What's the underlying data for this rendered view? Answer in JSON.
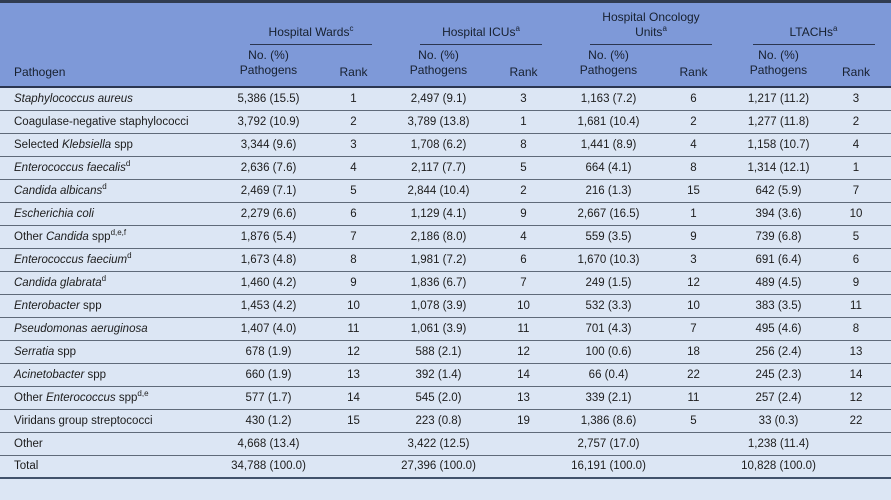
{
  "colors": {
    "header_bg": "#7e99d8",
    "row_bg": "#dce6f4",
    "top_bar": "#313c50",
    "rule": "#2b3650",
    "separator": "#5f6a79",
    "bottom_line": "#41526b",
    "header_text": "#17202f",
    "body_text": "#1c1c1c"
  },
  "table": {
    "pathogen_header": "Pathogen",
    "groups": [
      {
        "title": "Hospital Wards",
        "sup": "c"
      },
      {
        "title": "Hospital ICUs",
        "sup": "a"
      },
      {
        "title": "Hospital Oncology\nUnits",
        "sup": "a"
      },
      {
        "title": "LTACHs",
        "sup": "a"
      }
    ],
    "subheaders": {
      "count": "No. (%)\nPathogens",
      "rank": "Rank"
    },
    "rows": [
      {
        "name": [
          [
            "i",
            "Staphylococcus aureus"
          ]
        ],
        "sup": "",
        "cells": [
          "5,386 (15.5)",
          "1",
          "2,497 (9.1)",
          "3",
          "1,163 (7.2)",
          "6",
          "1,217 (11.2)",
          "3"
        ]
      },
      {
        "name": [
          [
            "n",
            "Coagulase-negative staphylococci"
          ]
        ],
        "sup": "",
        "cells": [
          "3,792 (10.9)",
          "2",
          "3,789 (13.8)",
          "1",
          "1,681 (10.4)",
          "2",
          "1,277 (11.8)",
          "2"
        ]
      },
      {
        "name": [
          [
            "n",
            "Selected "
          ],
          [
            "i",
            "Klebsiella"
          ],
          [
            "n",
            " spp"
          ]
        ],
        "sup": "",
        "cells": [
          "3,344 (9.6)",
          "3",
          "1,708 (6.2)",
          "8",
          "1,441 (8.9)",
          "4",
          "1,158 (10.7)",
          "4"
        ]
      },
      {
        "name": [
          [
            "i",
            "Enterococcus faecalis"
          ]
        ],
        "sup": "d",
        "cells": [
          "2,636 (7.6)",
          "4",
          "2,117 (7.7)",
          "5",
          "664 (4.1)",
          "8",
          "1,314 (12.1)",
          "1"
        ]
      },
      {
        "name": [
          [
            "i",
            "Candida albicans"
          ]
        ],
        "sup": "d",
        "cells": [
          "2,469 (7.1)",
          "5",
          "2,844 (10.4)",
          "2",
          "216 (1.3)",
          "15",
          "642 (5.9)",
          "7"
        ]
      },
      {
        "name": [
          [
            "i",
            "Escherichia coli"
          ]
        ],
        "sup": "",
        "cells": [
          "2,279 (6.6)",
          "6",
          "1,129 (4.1)",
          "9",
          "2,667 (16.5)",
          "1",
          "394 (3.6)",
          "10"
        ]
      },
      {
        "name": [
          [
            "n",
            "Other "
          ],
          [
            "i",
            "Candida"
          ],
          [
            "n",
            " spp"
          ]
        ],
        "sup": "d,e,f",
        "cells": [
          "1,876 (5.4)",
          "7",
          "2,186 (8.0)",
          "4",
          "559 (3.5)",
          "9",
          "739 (6.8)",
          "5"
        ]
      },
      {
        "name": [
          [
            "i",
            "Enterococcus faecium"
          ]
        ],
        "sup": "d",
        "cells": [
          "1,673 (4.8)",
          "8",
          "1,981 (7.2)",
          "6",
          "1,670 (10.3)",
          "3",
          "691 (6.4)",
          "6"
        ]
      },
      {
        "name": [
          [
            "i",
            "Candida glabrata"
          ]
        ],
        "sup": "d",
        "cells": [
          "1,460 (4.2)",
          "9",
          "1,836 (6.7)",
          "7",
          "249 (1.5)",
          "12",
          "489 (4.5)",
          "9"
        ]
      },
      {
        "name": [
          [
            "i",
            "Enterobacter"
          ],
          [
            "n",
            " spp"
          ]
        ],
        "sup": "",
        "cells": [
          "1,453 (4.2)",
          "10",
          "1,078 (3.9)",
          "10",
          "532 (3.3)",
          "10",
          "383 (3.5)",
          "11"
        ]
      },
      {
        "name": [
          [
            "i",
            "Pseudomonas aeruginosa"
          ]
        ],
        "sup": "",
        "cells": [
          "1,407 (4.0)",
          "11",
          "1,061 (3.9)",
          "11",
          "701 (4.3)",
          "7",
          "495 (4.6)",
          "8"
        ]
      },
      {
        "name": [
          [
            "i",
            "Serratia"
          ],
          [
            "n",
            " spp"
          ]
        ],
        "sup": "",
        "cells": [
          "678 (1.9)",
          "12",
          "588 (2.1)",
          "12",
          "100 (0.6)",
          "18",
          "256 (2.4)",
          "13"
        ]
      },
      {
        "name": [
          [
            "i",
            "Acinetobacter"
          ],
          [
            "n",
            " spp"
          ]
        ],
        "sup": "",
        "cells": [
          "660 (1.9)",
          "13",
          "392 (1.4)",
          "14",
          "66 (0.4)",
          "22",
          "245 (2.3)",
          "14"
        ]
      },
      {
        "name": [
          [
            "n",
            "Other "
          ],
          [
            "i",
            "Enterococcus"
          ],
          [
            "n",
            " spp"
          ]
        ],
        "sup": "d,e",
        "cells": [
          "577 (1.7)",
          "14",
          "545 (2.0)",
          "13",
          "339 (2.1)",
          "11",
          "257 (2.4)",
          "12"
        ]
      },
      {
        "name": [
          [
            "n",
            "Viridans group streptococci"
          ]
        ],
        "sup": "",
        "cells": [
          "430 (1.2)",
          "15",
          "223 (0.8)",
          "19",
          "1,386 (8.6)",
          "5",
          "33 (0.3)",
          "22"
        ]
      },
      {
        "name": [
          [
            "n",
            "Other"
          ]
        ],
        "sup": "",
        "cells": [
          "4,668 (13.4)",
          "",
          "3,422 (12.5)",
          "",
          "2,757 (17.0)",
          "",
          "1,238 (11.4)",
          ""
        ]
      },
      {
        "name": [
          [
            "n",
            "Total"
          ]
        ],
        "sup": "",
        "cells": [
          "34,788 (100.0)",
          "",
          "27,396 (100.0)",
          "",
          "16,191 (100.0)",
          "",
          "10,828 (100.0)",
          ""
        ]
      }
    ]
  }
}
